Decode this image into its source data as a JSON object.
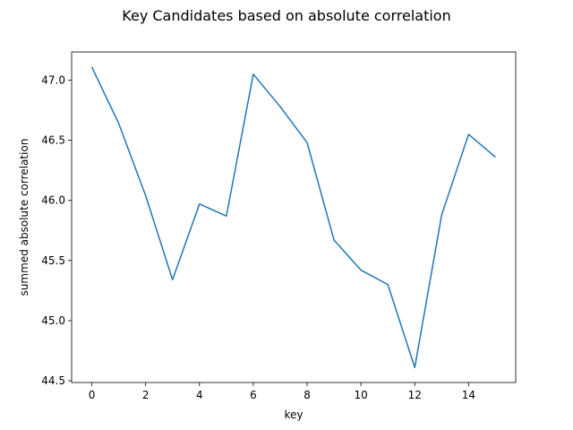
{
  "chart_data": {
    "type": "line",
    "title": "Key Candidates based on absolute correlation",
    "xlabel": "key",
    "ylabel": "summed absolute correlation",
    "xlim": [
      -0.75,
      15.75
    ],
    "ylim": [
      44.485,
      47.235
    ],
    "xticks": [
      0,
      2,
      4,
      6,
      8,
      10,
      12,
      14
    ],
    "yticks": [
      44.5,
      45.0,
      45.5,
      46.0,
      46.5,
      47.0
    ],
    "ytick_labels": [
      "44.5",
      "45.0",
      "45.5",
      "46.0",
      "46.5",
      "47.0"
    ],
    "grid": false,
    "line_color": "#1f77b4",
    "series": [
      {
        "x": [
          0,
          1,
          2,
          3,
          4,
          5,
          6,
          7,
          8,
          9,
          10,
          11,
          12,
          13,
          14,
          15
        ],
        "values": [
          47.11,
          46.64,
          46.04,
          45.34,
          45.97,
          45.87,
          47.05,
          46.78,
          46.48,
          45.67,
          45.42,
          45.3,
          44.61,
          45.88,
          46.55,
          46.36
        ]
      }
    ]
  }
}
